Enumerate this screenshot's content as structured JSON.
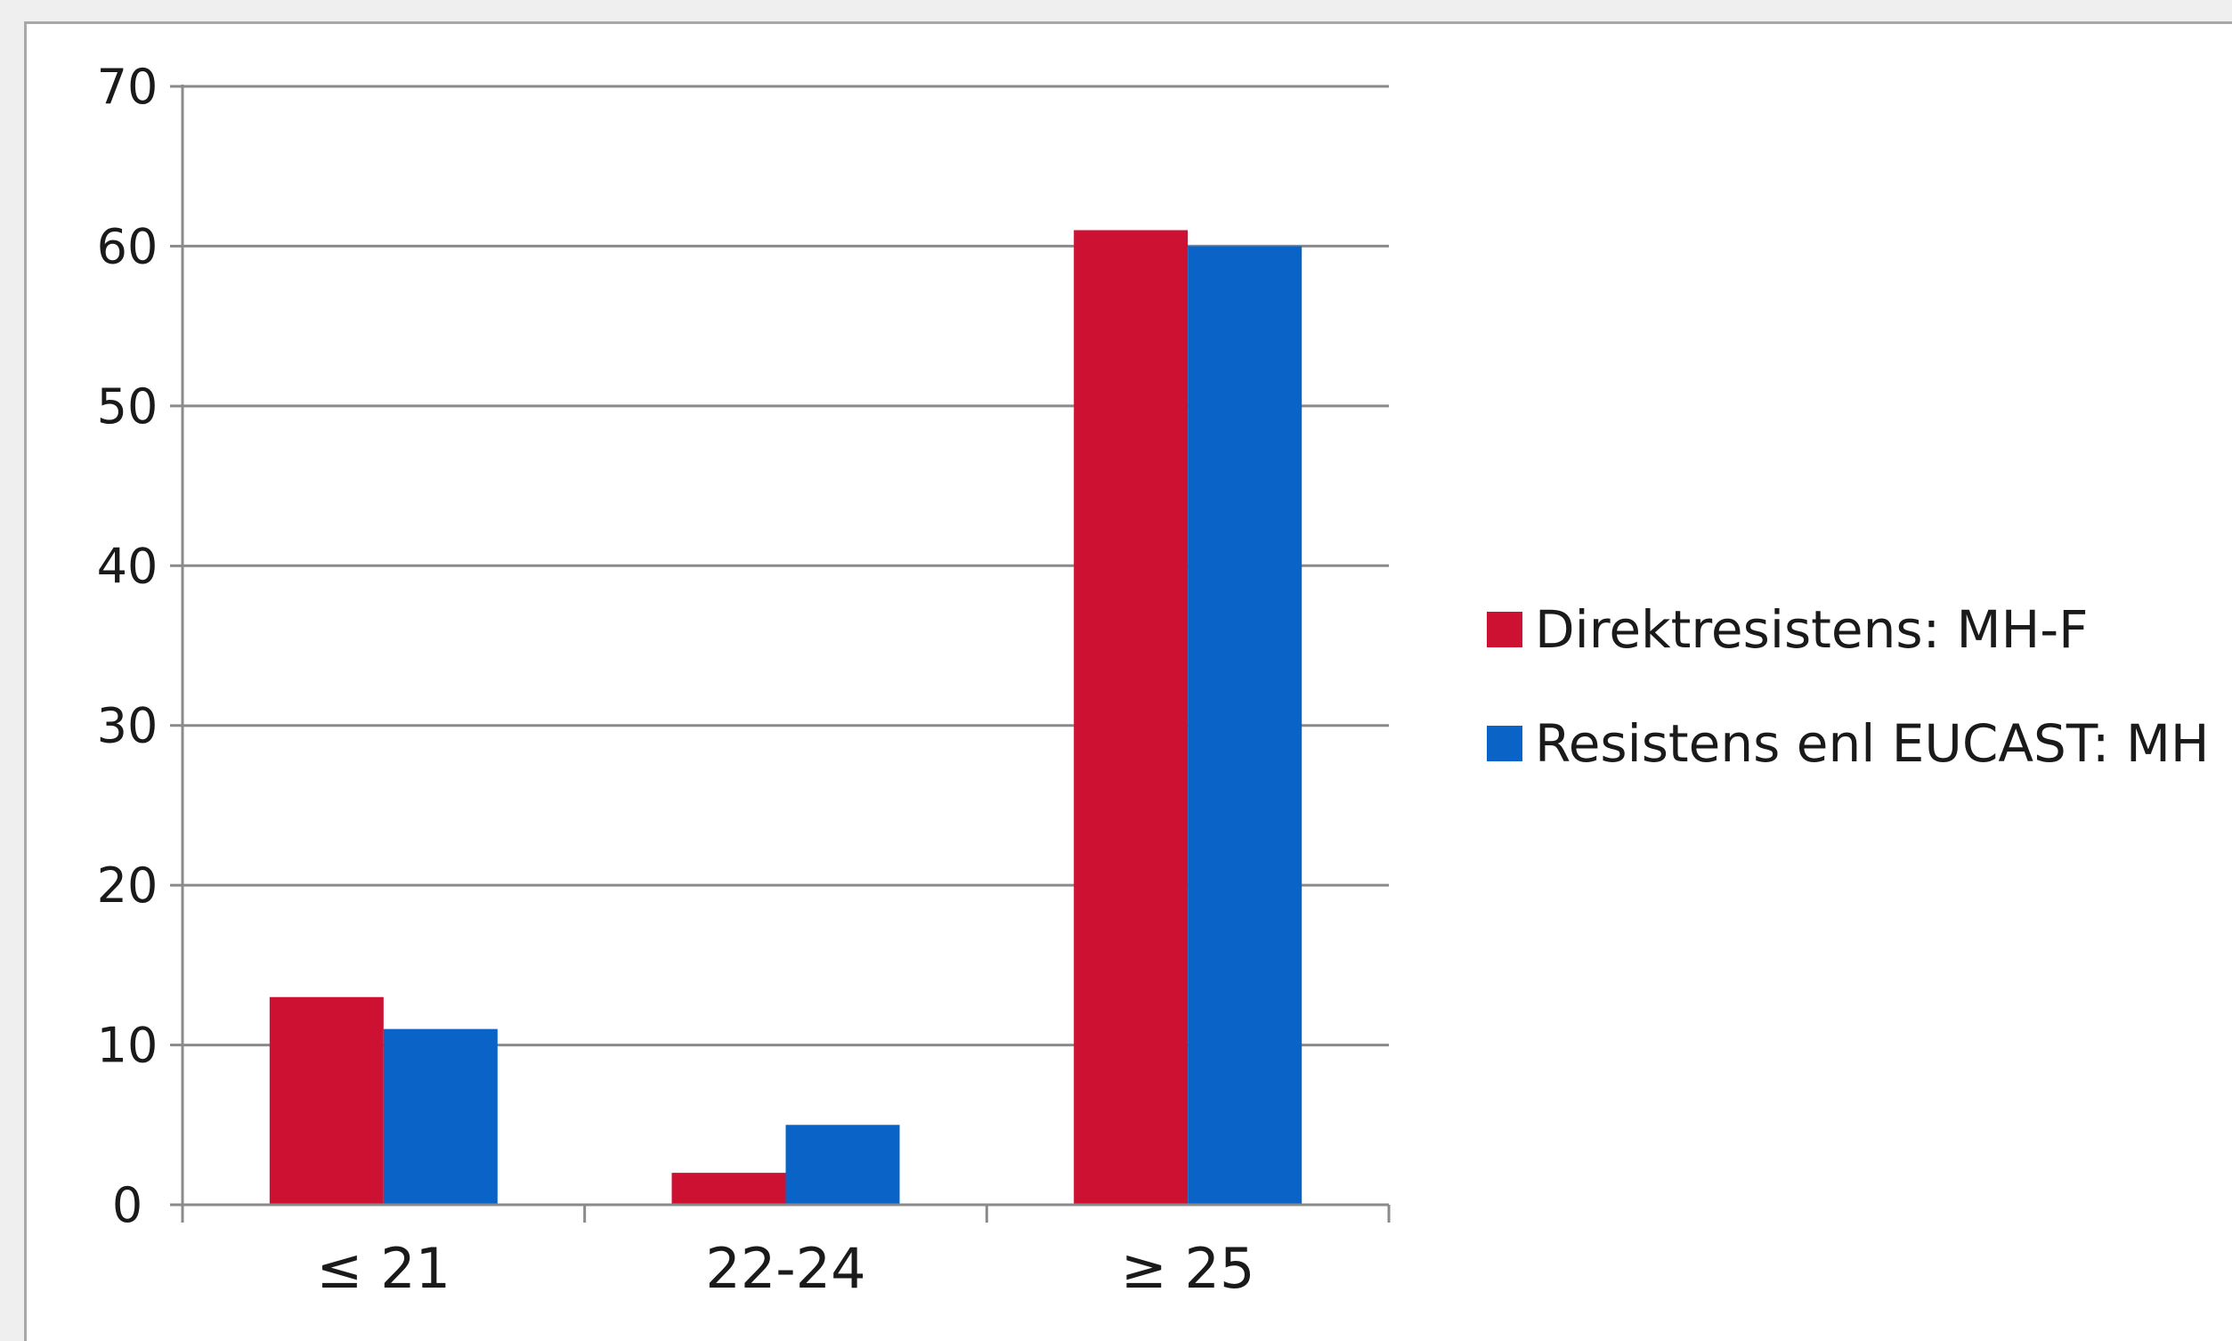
{
  "chart_data": {
    "type": "bar",
    "categories": [
      "≤ 21",
      "22-24",
      "≥ 25"
    ],
    "series": [
      {
        "name": "Direktresistens: MH-F",
        "values": [
          13,
          2,
          61
        ],
        "color": "#cc1133"
      },
      {
        "name": "Resistens enl EUCAST: MH",
        "values": [
          11,
          5,
          60
        ],
        "color": "#0a64c8"
      }
    ],
    "title": "",
    "xlabel": "",
    "ylabel": "",
    "ylim": [
      0,
      70
    ],
    "yticks": [
      "0",
      "10",
      "20",
      "30",
      "40",
      "50",
      "60",
      "70"
    ],
    "grid": true,
    "legend_position": "right"
  }
}
